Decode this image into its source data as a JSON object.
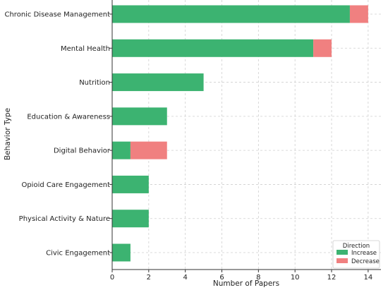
{
  "chart_data": {
    "type": "bar",
    "orientation": "horizontal",
    "stacked": true,
    "categories": [
      "Chronic Disease Management",
      "Mental Health",
      "Nutrition",
      "Education & Awareness",
      "Digital Behavior",
      "Opioid Care Engagement",
      "Physical Activity & Nature",
      "Civic Engagement"
    ],
    "series": [
      {
        "name": "Increase",
        "color": "#3cb371",
        "values": [
          13,
          11,
          5,
          3,
          1,
          2,
          2,
          1
        ]
      },
      {
        "name": "Decrease",
        "color": "#f08080",
        "values": [
          1,
          1,
          0,
          0,
          2,
          0,
          0,
          0
        ]
      }
    ],
    "xlabel": "Number of Papers",
    "ylabel": "Behavior Type",
    "xlim": [
      0,
      14.7
    ],
    "xticks": [
      0,
      2,
      4,
      6,
      8,
      10,
      12,
      14
    ],
    "grid": true,
    "legend": {
      "title": "Direction",
      "position": "lower-right"
    }
  }
}
